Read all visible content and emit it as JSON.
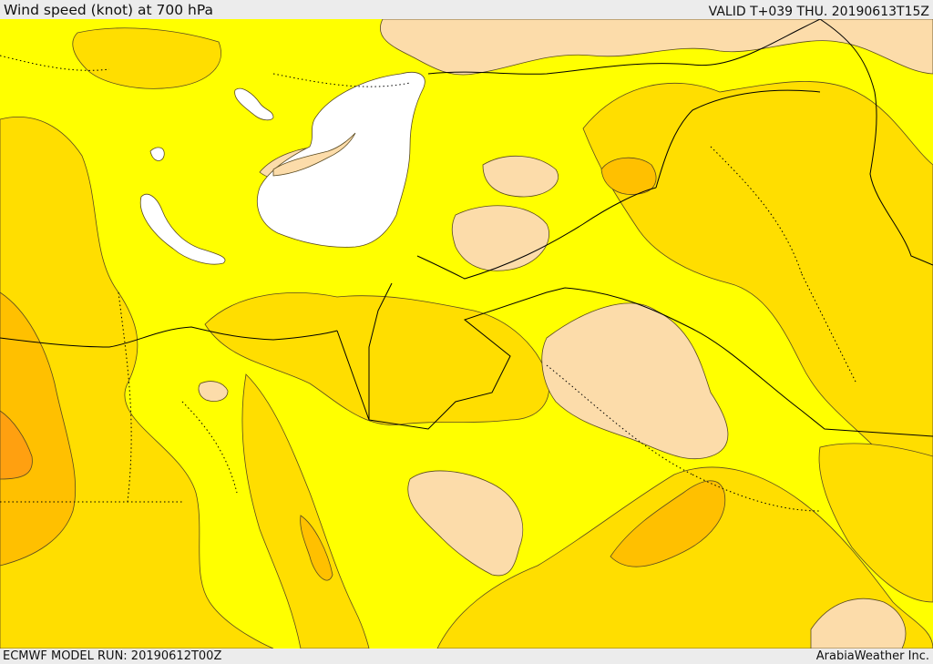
{
  "header": {
    "title": "Wind speed (knot) at 700 hPa",
    "valid_time": "VALID T+039 THU. 20190613T15Z"
  },
  "footer": {
    "model_run": "ECMWF MODEL RUN: 20190612T00Z",
    "provider": "ArabiaWeather Inc."
  },
  "map": {
    "field": "wind speed at 700 hPa",
    "unit": "knot",
    "colors": {
      "level_1": "#ffff00",
      "level_2": "#ffde00",
      "level_3": "#ffc000",
      "level_4": "#ffa010",
      "calm": "#fcdcaa",
      "water": "#ffffff",
      "contour": "#5a4a20",
      "border": "#000000"
    }
  }
}
